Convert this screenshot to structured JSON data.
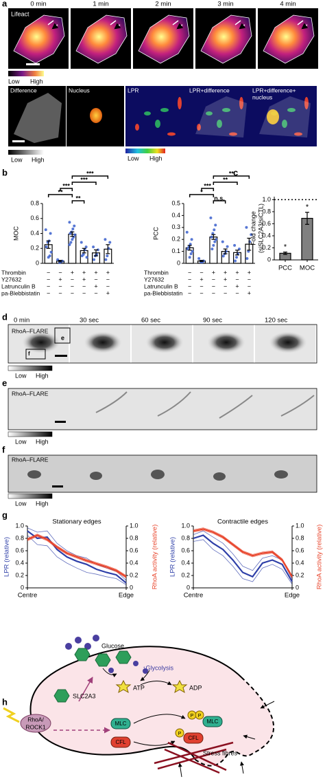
{
  "panel_labels": {
    "a": "a",
    "b": "b",
    "c": "c",
    "d": "d",
    "e": "e",
    "f": "f",
    "g": "g",
    "h": "h"
  },
  "panel_a": {
    "times": [
      "0 min",
      "1 min",
      "2 min",
      "3 min",
      "4 min"
    ],
    "stain": "Lifeact",
    "low": "Low",
    "high": "High",
    "channels": [
      "Difference",
      "Nucleus",
      "LPR",
      "LPR+difference",
      "LPR+difference+",
      "nucleus"
    ],
    "gray_low": "Low",
    "gray_high": "High",
    "lpr_low": "Low",
    "lpr_high": "High"
  },
  "panel_d": {
    "times": [
      "0 min",
      "30 sec",
      "60 sec",
      "90 sec",
      "120 sec"
    ],
    "probe": "RhoA–FLARE",
    "inset_e": "e",
    "inset_f": "f",
    "low": "Low",
    "high": "High"
  },
  "panel_e": {
    "probe": "RhoA–FLARE",
    "low": "Low",
    "high": "High"
  },
  "panel_f": {
    "probe": "RhoA–FLARE",
    "low": "Low",
    "high": "High"
  },
  "panel_h": {
    "glucose": "Glucose",
    "transporter": "SLC2A3",
    "glycolysis": "↑Glycolysis",
    "atp": "ATP",
    "adp": "ADP",
    "rhoa": [
      "RhoA/",
      "ROCK1"
    ],
    "mlc": "MLC",
    "cfl": "CFL",
    "mlc_p": "MLC",
    "cfl_p": "CFL",
    "phospho": [
      "P",
      "P",
      "P"
    ],
    "stress_fibres": "Stress fibres"
  },
  "chart_data": [
    {
      "type": "bar",
      "ylabel": "MOC",
      "ylim": [
        0,
        0.8
      ],
      "yticks": [
        0,
        0.2,
        0.4,
        0.6,
        0.8
      ],
      "values": [
        0.25,
        0.03,
        0.39,
        0.17,
        0.14,
        0.19
      ],
      "errors": [
        0.05,
        0.01,
        0.03,
        0.03,
        0.04,
        0.06
      ],
      "points": [
        [
          0.45,
          0.4,
          0.3,
          0.28,
          0.22,
          0.15,
          0.1,
          0.08
        ],
        [
          0.05,
          0.03,
          0.02,
          0.01
        ],
        [
          0.55,
          0.5,
          0.46,
          0.42,
          0.4,
          0.38,
          0.35,
          0.32,
          0.28,
          0.25
        ],
        [
          0.28,
          0.22,
          0.18,
          0.12,
          0.1,
          0.08
        ],
        [
          0.22,
          0.18,
          0.12,
          0.1,
          0.05
        ],
        [
          0.32,
          0.28,
          0.2,
          0.1,
          0.05
        ]
      ],
      "color": "#ffffff",
      "point_color": "#3a5fcd",
      "treatments": [
        {
          "name": "Thrombin",
          "signs": [
            "−",
            "−",
            "+",
            "+",
            "+",
            "+"
          ]
        },
        {
          "name": "Y27632",
          "signs": [
            "−",
            "+",
            "−",
            "+",
            "−",
            "−"
          ]
        },
        {
          "name": "Latrunculin B",
          "signs": [
            "−",
            "−",
            "−",
            "−",
            "+",
            "−"
          ]
        },
        {
          "name": "pa-Blebbistatin",
          "signs": [
            "−",
            "−",
            "−",
            "−",
            "−",
            "+"
          ]
        }
      ],
      "annotations": [
        "***",
        "***",
        "***",
        "**",
        "**"
      ]
    },
    {
      "type": "bar",
      "ylabel": "PCC",
      "ylim": [
        0,
        0.5
      ],
      "yticks": [
        0,
        0.1,
        0.2,
        0.3,
        0.4,
        0.5
      ],
      "values": [
        0.13,
        0.02,
        0.22,
        0.1,
        0.09,
        0.16
      ],
      "errors": [
        0.02,
        0.005,
        0.02,
        0.02,
        0.02,
        0.05
      ],
      "points": [
        [
          0.26,
          0.2,
          0.16,
          0.14,
          0.12,
          0.1,
          0.08,
          0.05
        ],
        [
          0.04,
          0.02,
          0.01,
          0.01
        ],
        [
          0.38,
          0.32,
          0.28,
          0.25,
          0.22,
          0.2,
          0.18,
          0.15,
          0.12
        ],
        [
          0.18,
          0.14,
          0.1,
          0.08,
          0.06
        ],
        [
          0.15,
          0.12,
          0.08,
          0.05,
          0.02
        ],
        [
          0.3,
          0.24,
          0.18,
          0.1,
          0.04
        ]
      ],
      "color": "#ffffff",
      "point_color": "#3a5fcd",
      "treatments": [
        {
          "name": "Thrombin",
          "signs": [
            "−",
            "−",
            "+",
            "+",
            "+",
            "+"
          ]
        },
        {
          "name": "Y27632",
          "signs": [
            "−",
            "+",
            "−",
            "+",
            "−",
            "−"
          ]
        },
        {
          "name": "Latrunculin B",
          "signs": [
            "−",
            "−",
            "−",
            "−",
            "+",
            "−"
          ]
        },
        {
          "name": "pa-Blebbistatin",
          "signs": [
            "−",
            "−",
            "−",
            "−",
            "−",
            "+"
          ]
        }
      ],
      "annotations": [
        "**",
        "**",
        "***",
        "*",
        "n.s."
      ]
    },
    {
      "type": "bar",
      "ylabel": [
        "Fold change",
        "(siSLC2A3/siCTL)"
      ],
      "categories": [
        "PCC",
        "MOC"
      ],
      "values": [
        0.11,
        0.69
      ],
      "errors": [
        0.02,
        0.1
      ],
      "color": "#808080",
      "ylim": [
        0,
        1.05
      ],
      "yticks": [
        0,
        0.2,
        0.4,
        0.6,
        0.8,
        {
          "value": 1,
          "label": "1.0"
        }
      ],
      "reference_line": 1,
      "annotations": [
        "*",
        "*"
      ]
    },
    {
      "type": "line",
      "title": "Stationary edges",
      "ylabel": "LPR (relative)",
      "y2label": "RhoA activity (relative)",
      "x": [
        0,
        0.1,
        0.2,
        0.3,
        0.4,
        0.5,
        0.6,
        0.7,
        0.8,
        0.9,
        1
      ],
      "xlim": [
        0,
        1
      ],
      "xticks": [
        {
          "value": 0,
          "label": "Centre"
        },
        {
          "value": 1,
          "label": "Edge"
        }
      ],
      "ylim": [
        0,
        1
      ],
      "yticks": [
        0,
        0.2,
        0.4,
        0.6,
        0.8,
        {
          "value": 1,
          "label": "1.0"
        }
      ],
      "y2lim": [
        0,
        1
      ],
      "y2ticks": [
        0,
        0.2,
        0.4,
        0.6,
        0.8,
        {
          "value": 1,
          "label": "1.0"
        }
      ],
      "series": [
        {
          "color": "#2e3fa8",
          "values": [
            0.92,
            0.8,
            0.82,
            0.62,
            0.5,
            0.43,
            0.38,
            0.3,
            0.25,
            0.21,
            0.08
          ],
          "lower": [
            0.85,
            0.7,
            0.68,
            0.5,
            0.4,
            0.32,
            0.25,
            0.22,
            0.18,
            0.15,
            0.05
          ],
          "upper": [
            0.97,
            0.9,
            0.92,
            0.72,
            0.6,
            0.52,
            0.48,
            0.38,
            0.32,
            0.27,
            0.12
          ]
        },
        {
          "color": "#e8452c",
          "axis": "y2",
          "values": [
            0.78,
            0.85,
            0.78,
            0.66,
            0.56,
            0.5,
            0.44,
            0.39,
            0.34,
            0.28,
            0.18
          ],
          "lower": [
            0.76,
            0.83,
            0.76,
            0.64,
            0.54,
            0.48,
            0.42,
            0.37,
            0.32,
            0.26,
            0.16
          ],
          "upper": [
            0.8,
            0.87,
            0.8,
            0.68,
            0.58,
            0.52,
            0.46,
            0.41,
            0.36,
            0.3,
            0.2
          ]
        }
      ]
    },
    {
      "type": "line",
      "title": "Contractile edges",
      "ylabel": "LPR (relative)",
      "y2label": "RhoA activity (relative)",
      "x": [
        0,
        0.1,
        0.2,
        0.3,
        0.4,
        0.5,
        0.6,
        0.7,
        0.8,
        0.9,
        1
      ],
      "xlim": [
        0,
        1
      ],
      "xticks": [
        {
          "value": 0,
          "label": "Centre"
        },
        {
          "value": 1,
          "label": "Edge"
        }
      ],
      "ylim": [
        0,
        1
      ],
      "yticks": [
        0,
        0.2,
        0.4,
        0.6,
        0.8,
        {
          "value": 1,
          "label": "1.0"
        }
      ],
      "y2lim": [
        0,
        1
      ],
      "y2ticks": [
        0,
        0.2,
        0.4,
        0.6,
        0.8,
        {
          "value": 1,
          "label": "1.0"
        }
      ],
      "series": [
        {
          "color": "#2e3fa8",
          "values": [
            0.8,
            0.85,
            0.72,
            0.62,
            0.45,
            0.25,
            0.18,
            0.4,
            0.45,
            0.38,
            0.1
          ],
          "lower": [
            0.75,
            0.78,
            0.62,
            0.52,
            0.35,
            0.15,
            0.1,
            0.32,
            0.38,
            0.3,
            0.06
          ],
          "upper": [
            0.86,
            0.92,
            0.82,
            0.72,
            0.55,
            0.35,
            0.28,
            0.48,
            0.52,
            0.45,
            0.14
          ]
        },
        {
          "color": "#e8452c",
          "axis": "y2",
          "values": [
            0.92,
            0.95,
            0.9,
            0.82,
            0.7,
            0.58,
            0.52,
            0.56,
            0.58,
            0.45,
            0.18
          ],
          "lower": [
            0.9,
            0.93,
            0.88,
            0.8,
            0.68,
            0.56,
            0.5,
            0.54,
            0.56,
            0.43,
            0.16
          ],
          "upper": [
            0.94,
            0.97,
            0.92,
            0.84,
            0.72,
            0.6,
            0.54,
            0.58,
            0.6,
            0.47,
            0.2
          ]
        }
      ]
    }
  ]
}
